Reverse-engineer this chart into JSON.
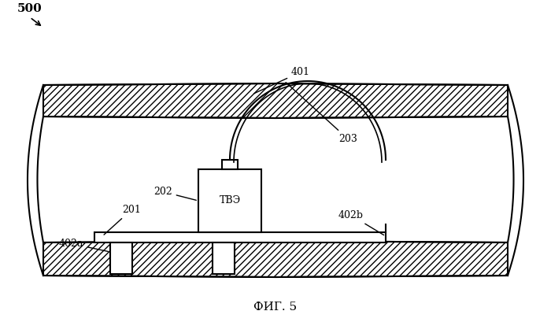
{
  "fig_label": "ФИГ. 5",
  "label_500": "500",
  "label_401": "401",
  "label_203": "203",
  "label_202": "202",
  "label_201": "201",
  "label_402a": "402a",
  "label_402b": "402b",
  "label_tve": "ТВЭ",
  "bg_color": "#ffffff",
  "line_color": "#000000",
  "hatch_color": "#000000",
  "hatch_pattern": "///",
  "figsize": [
    7.0,
    4.09
  ],
  "dpi": 100
}
